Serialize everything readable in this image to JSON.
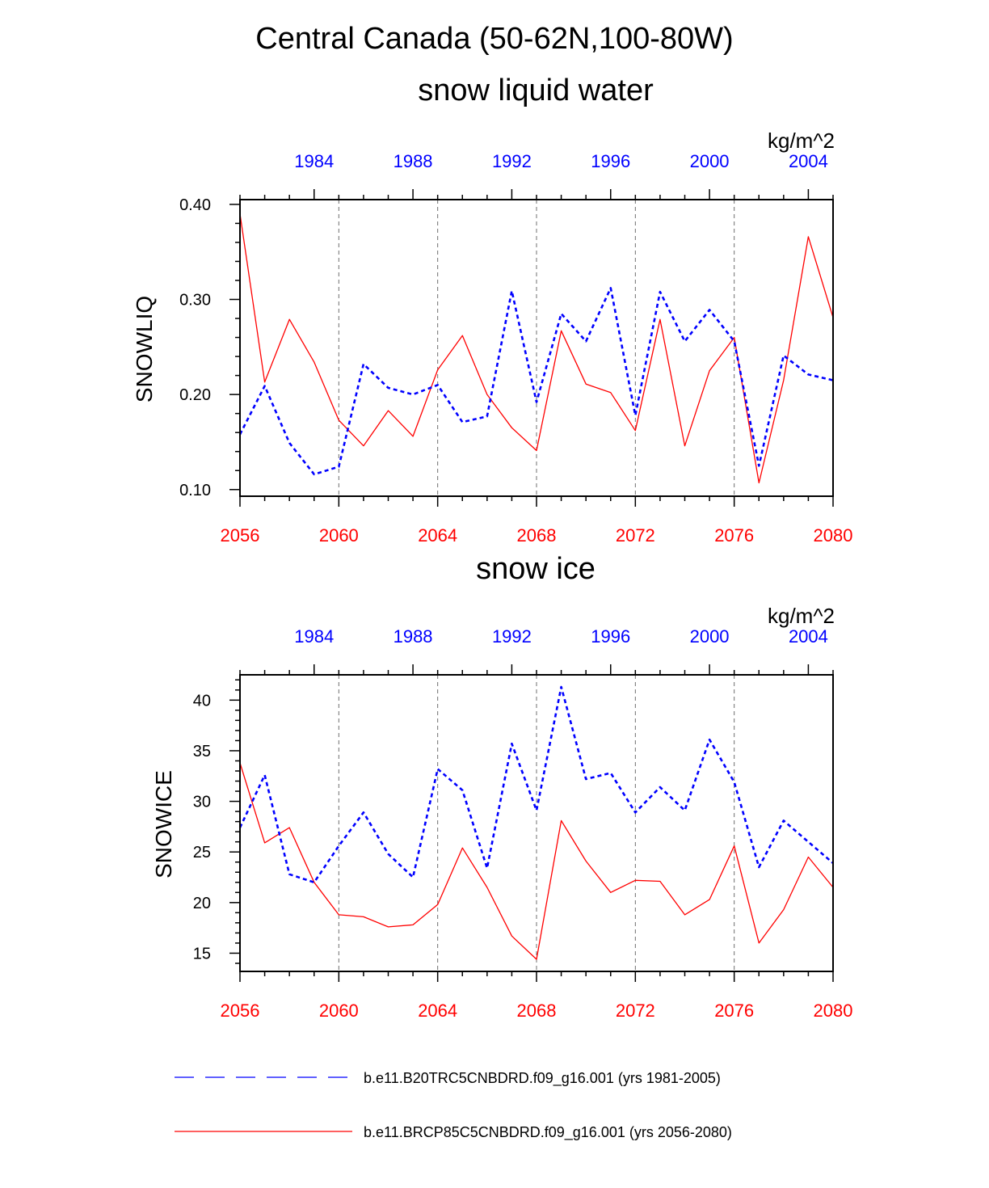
{
  "figure_title": "Central Canada (50-62N,100-80W)",
  "legend": [
    {
      "label": "b.e11.B20TRC5CNBDRD.f09_g16.001 (yrs 1981-2005)",
      "color": "#0000ff",
      "style": "dashed"
    },
    {
      "label": "b.e11.BRCP85C5CNBDRD.f09_g16.001 (yrs 2056-2080)",
      "color": "#ff0000",
      "style": "solid"
    }
  ],
  "chart_data": [
    {
      "type": "line",
      "title": "snow liquid water",
      "units": "kg/m^2",
      "ylabel": "SNOWLIQ",
      "ylim": [
        0.093,
        0.405
      ],
      "yticks": [
        0.1,
        0.2,
        0.3,
        0.4
      ],
      "ytick_labels": [
        "0.10",
        "0.20",
        "0.30",
        "0.40"
      ],
      "yminor_step": 0.02,
      "bottom_axis": {
        "range": [
          2056,
          2080
        ],
        "ticks": [
          2056,
          2060,
          2064,
          2068,
          2072,
          2076,
          2080
        ],
        "color": "#ff0000"
      },
      "top_axis": {
        "range": [
          1981,
          2005
        ],
        "ticks": [
          1984,
          1988,
          1992,
          1996,
          2000,
          2004
        ],
        "color": "#0000ff"
      },
      "series": [
        {
          "name": "b.e11.BRCP85C5CNBDRD.f09_g16.001 (yrs 2056-2080)",
          "color": "#ff0000",
          "style": "solid",
          "x": [
            2056,
            2057,
            2058,
            2059,
            2060,
            2061,
            2062,
            2063,
            2064,
            2065,
            2066,
            2067,
            2068,
            2069,
            2070,
            2071,
            2072,
            2073,
            2074,
            2075,
            2076,
            2077,
            2078,
            2079,
            2080
          ],
          "values": [
            0.39,
            0.213,
            0.279,
            0.234,
            0.173,
            0.146,
            0.183,
            0.156,
            0.226,
            0.262,
            0.2,
            0.165,
            0.141,
            0.267,
            0.211,
            0.202,
            0.162,
            0.279,
            0.146,
            0.225,
            0.26,
            0.107,
            0.215,
            0.366,
            0.281
          ]
        },
        {
          "name": "b.e11.B20TRC5CNBDRD.f09_g16.001 (yrs 1981-2005)",
          "color": "#0000ff",
          "style": "dashed",
          "x": [
            1981,
            1982,
            1983,
            1984,
            1985,
            1986,
            1987,
            1988,
            1989,
            1990,
            1991,
            1992,
            1993,
            1994,
            1995,
            1996,
            1997,
            1998,
            1999,
            2000,
            2001,
            2002,
            2003,
            2004,
            2005
          ],
          "values": [
            0.158,
            0.209,
            0.149,
            0.116,
            0.124,
            0.232,
            0.207,
            0.2,
            0.21,
            0.171,
            0.177,
            0.309,
            0.192,
            0.285,
            0.256,
            0.312,
            0.178,
            0.308,
            0.256,
            0.289,
            0.256,
            0.125,
            0.241,
            0.221,
            0.215
          ]
        }
      ]
    },
    {
      "type": "line",
      "title": "snow ice",
      "units": "kg/m^2",
      "ylabel": "SNOWICE",
      "ylim": [
        13.2,
        42.5
      ],
      "yticks": [
        15,
        20,
        25,
        30,
        35,
        40
      ],
      "ytick_labels": [
        "15",
        "20",
        "25",
        "30",
        "35",
        "40"
      ],
      "yminor_step": 1,
      "bottom_axis": {
        "range": [
          2056,
          2080
        ],
        "ticks": [
          2056,
          2060,
          2064,
          2068,
          2072,
          2076,
          2080
        ],
        "color": "#ff0000"
      },
      "top_axis": {
        "range": [
          1981,
          2005
        ],
        "ticks": [
          1984,
          1988,
          1992,
          1996,
          2000,
          2004
        ],
        "color": "#0000ff"
      },
      "series": [
        {
          "name": "b.e11.BRCP85C5CNBDRD.f09_g16.001 (yrs 2056-2080)",
          "color": "#ff0000",
          "style": "solid",
          "x": [
            2056,
            2057,
            2058,
            2059,
            2060,
            2061,
            2062,
            2063,
            2064,
            2065,
            2066,
            2067,
            2068,
            2069,
            2070,
            2071,
            2072,
            2073,
            2074,
            2075,
            2076,
            2077,
            2078,
            2079,
            2080
          ],
          "values": [
            33.8,
            25.9,
            27.4,
            22.0,
            18.8,
            18.6,
            17.6,
            17.8,
            19.8,
            25.4,
            21.5,
            16.7,
            14.4,
            28.1,
            24.1,
            21.0,
            22.2,
            22.1,
            18.8,
            20.3,
            25.6,
            16.0,
            19.3,
            24.5,
            21.5
          ]
        },
        {
          "name": "b.e11.B20TRC5CNBDRD.f09_g16.001 (yrs 1981-2005)",
          "color": "#0000ff",
          "style": "dashed",
          "x": [
            1981,
            1982,
            1983,
            1984,
            1985,
            1986,
            1987,
            1988,
            1989,
            1990,
            1991,
            1992,
            1993,
            1994,
            1995,
            1996,
            1997,
            1998,
            1999,
            2000,
            2001,
            2002,
            2003,
            2004,
            2005
          ],
          "values": [
            27.4,
            32.6,
            22.8,
            22.0,
            25.6,
            28.9,
            24.8,
            22.5,
            33.2,
            31.1,
            23.4,
            35.7,
            29.1,
            41.3,
            32.2,
            32.8,
            28.9,
            31.4,
            29.1,
            36.1,
            31.9,
            23.5,
            28.1,
            26.0,
            23.9
          ]
        }
      ]
    }
  ]
}
